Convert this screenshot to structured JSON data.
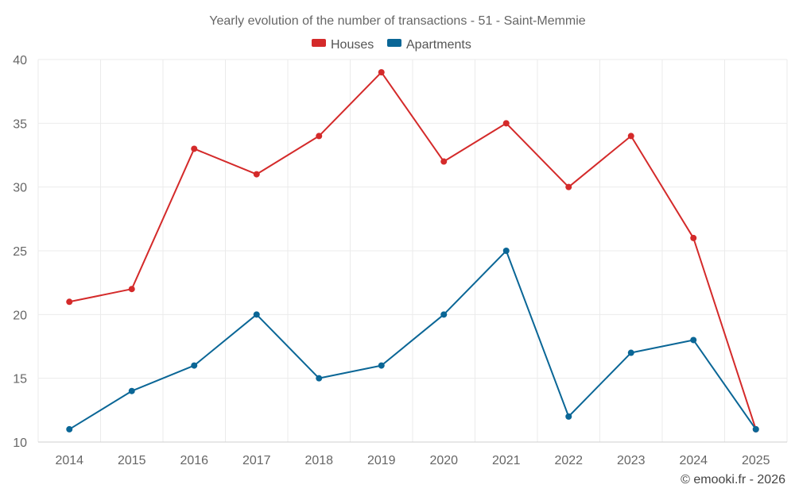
{
  "chart_data": {
    "type": "line",
    "title": "Yearly evolution of the number of transactions - 51 - Saint-Memmie",
    "categories": [
      "2014",
      "2015",
      "2016",
      "2017",
      "2018",
      "2019",
      "2020",
      "2021",
      "2022",
      "2023",
      "2024",
      "2025"
    ],
    "series": [
      {
        "name": "Houses",
        "color": "#d42a2a",
        "values": [
          21,
          22,
          33,
          31,
          34,
          39,
          32,
          35,
          30,
          34,
          26,
          11
        ]
      },
      {
        "name": "Apartments",
        "color": "#0a6696",
        "values": [
          11,
          14,
          16,
          20,
          15,
          16,
          20,
          25,
          12,
          17,
          18,
          11
        ]
      }
    ],
    "y_ticks": [
      10,
      15,
      20,
      25,
      30,
      35,
      40
    ],
    "ylim": [
      10,
      40
    ],
    "xlabel": "",
    "ylabel": "",
    "legend_position": "top-center",
    "grid": true
  },
  "credit": "© emooki.fr - 2026"
}
